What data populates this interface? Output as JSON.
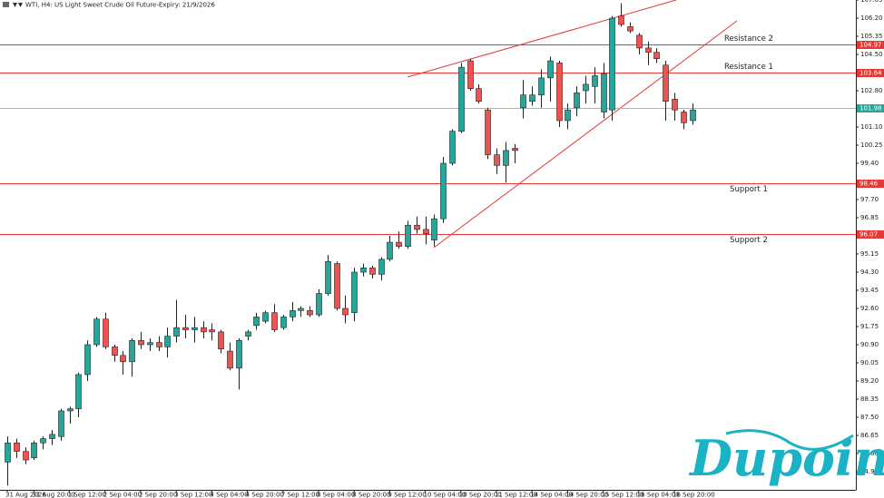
{
  "chart_data": {
    "type": "candlestick",
    "title": "WTI, H4:  US Light Sweet Crude Oil Future-Expiry: 21/9/2026",
    "logo": "Dupoin",
    "categories": [
      "31 Aug 2026",
      null,
      null,
      "31 Aug 20:00",
      null,
      null,
      null,
      "1 Sep 12:00",
      null,
      null,
      null,
      "2 Sep 04:00",
      null,
      null,
      null,
      "2 Sep 20:00",
      null,
      null,
      null,
      "3 Sep 12:00",
      null,
      null,
      null,
      "4 Sep 04:00",
      null,
      null,
      null,
      "4 Sep 20:00",
      null,
      null,
      null,
      "7 Sep 12:00",
      null,
      null,
      null,
      "8 Sep 04:00",
      null,
      null,
      null,
      "8 Sep 20:00",
      null,
      null,
      null,
      "9 Sep 12:00",
      null,
      null,
      null,
      "10 Sep 04:00",
      null,
      null,
      null,
      "10 Sep 20:00",
      null,
      null,
      null,
      "11 Sep 12:00",
      null,
      null,
      null,
      "14 Sep 04:00",
      null,
      null,
      null,
      "14 Sep 20:00",
      null,
      null,
      null,
      "15 Sep 12:00",
      null,
      null,
      null,
      "16 Sep 04:00",
      null,
      null,
      null,
      "16 Sep 20:00",
      null,
      null
    ],
    "open": [
      85.4,
      86.3,
      85.9,
      85.6,
      86.3,
      86.5,
      86.6,
      87.8,
      87.9,
      89.5,
      90.9,
      92.1,
      90.8,
      90.4,
      90.1,
      91.1,
      90.9,
      91.0,
      90.8,
      91.3,
      91.7,
      91.6,
      91.7,
      91.6,
      91.5,
      90.6,
      89.8,
      91.3,
      91.8,
      92.0,
      92.4,
      91.7,
      92.2,
      92.5,
      92.5,
      92.3,
      93.3,
      94.7,
      92.6,
      92.4,
      94.3,
      94.5,
      94.2,
      94.9,
      95.7,
      95.5,
      96.5,
      96.3,
      95.8,
      96.8,
      99.4,
      100.9,
      104.2,
      102.9,
      101.9,
      99.8,
      99.3,
      100.1,
      102.0,
      102.3,
      102.6,
      103.4,
      104.1,
      101.4,
      102.0,
      102.8,
      103.0,
      101.8,
      101.9,
      106.3,
      105.8,
      105.4,
      104.8,
      104.6,
      104.0,
      102.4,
      101.8,
      101.4
    ],
    "high": [
      86.6,
      86.5,
      86.1,
      86.4,
      86.6,
      86.9,
      87.9,
      88.0,
      89.6,
      91.1,
      92.2,
      92.4,
      90.9,
      90.6,
      91.2,
      91.5,
      91.2,
      91.3,
      91.7,
      93.0,
      92.3,
      92.2,
      92.0,
      91.9,
      91.6,
      91.0,
      91.2,
      91.6,
      92.4,
      92.5,
      92.8,
      92.3,
      92.9,
      92.7,
      92.7,
      93.5,
      95.1,
      94.8,
      93.2,
      94.5,
      94.7,
      94.6,
      95.0,
      96.0,
      96.2,
      96.7,
      96.9,
      96.9,
      97.0,
      99.7,
      101.0,
      104.1,
      104.3,
      103.1,
      102.0,
      100.1,
      100.4,
      100.3,
      103.3,
      103.0,
      103.8,
      104.4,
      104.2,
      102.2,
      103.0,
      103.5,
      103.9,
      104.1,
      106.3,
      106.9,
      106.0,
      105.5,
      105.1,
      104.8,
      104.2,
      102.7,
      101.9,
      102.2
    ],
    "low": [
      84.3,
      85.6,
      85.3,
      85.5,
      86.0,
      86.2,
      86.4,
      87.2,
      87.5,
      89.2,
      90.8,
      90.7,
      90.1,
      89.5,
      89.4,
      90.7,
      90.6,
      90.6,
      90.3,
      91.0,
      91.2,
      91.0,
      91.2,
      91.1,
      90.5,
      89.7,
      88.8,
      91.1,
      91.6,
      91.9,
      91.5,
      91.6,
      92.0,
      92.2,
      92.2,
      92.2,
      93.2,
      92.5,
      91.9,
      92.0,
      94.1,
      94.0,
      93.9,
      94.8,
      95.4,
      95.4,
      96.1,
      95.6,
      95.5,
      96.6,
      99.3,
      100.8,
      102.8,
      102.2,
      99.6,
      98.9,
      98.5,
      99.4,
      101.5,
      102.1,
      102.0,
      102.3,
      101.1,
      101.0,
      101.6,
      102.2,
      102.2,
      101.5,
      101.4,
      105.8,
      105.5,
      104.5,
      104.0,
      104.1,
      101.4,
      101.4,
      101.0,
      101.2
    ],
    "close": [
      86.3,
      85.9,
      85.5,
      86.3,
      86.5,
      86.7,
      87.8,
      87.9,
      89.5,
      90.9,
      92.1,
      90.8,
      90.4,
      90.1,
      91.1,
      90.9,
      91.0,
      90.8,
      91.3,
      91.7,
      91.6,
      91.7,
      91.5,
      91.5,
      90.7,
      89.8,
      91.1,
      91.5,
      92.2,
      92.4,
      91.6,
      92.2,
      92.5,
      92.6,
      92.3,
      93.3,
      94.8,
      92.6,
      92.3,
      94.3,
      94.5,
      94.2,
      94.9,
      95.7,
      95.5,
      96.5,
      96.3,
      96.1,
      96.8,
      99.4,
      100.9,
      103.9,
      102.9,
      102.3,
      99.8,
      99.3,
      100.0,
      100.0,
      102.6,
      102.6,
      103.4,
      104.2,
      101.4,
      101.9,
      102.7,
      103.1,
      103.5,
      103.6,
      106.2,
      105.9,
      105.6,
      104.8,
      104.6,
      104.3,
      102.3,
      101.9,
      101.3,
      101.9
    ],
    "up_color": "#26a69a",
    "down_color": "#ef5350",
    "ylim": [
      84.1,
      107.05
    ],
    "yticks": [
      84.95,
      {
        "value": 85.8,
        "label": "85.80"
      },
      86.65,
      {
        "value": 87.5,
        "label": "87.50"
      },
      88.35,
      {
        "value": 89.2,
        "label": "89.20"
      },
      90.05,
      {
        "value": 90.9,
        "label": "90.90"
      },
      91.75,
      {
        "value": 92.6,
        "label": "92.60"
      },
      93.45,
      {
        "value": 94.3,
        "label": "94.30"
      },
      95.15,
      96.85,
      {
        "value": 97.7,
        "label": "97.70"
      },
      {
        "value": 99.4,
        "label": "99.40"
      },
      100.25,
      {
        "value": 101.1,
        "label": "101.10"
      },
      {
        "value": 102.8,
        "label": "102.80"
      },
      {
        "value": 104.5,
        "label": "104.50"
      },
      105.35,
      {
        "value": 106.2,
        "label": "106.20"
      },
      107.05
    ],
    "levels": [
      {
        "name": "Resistance 2",
        "value": 104.97,
        "color": "#e53935"
      },
      {
        "name": "Resistance 1",
        "value": 103.64,
        "color": "#e53935"
      },
      {
        "name": "Support 1",
        "value": 98.46,
        "color": "#e53935"
      },
      {
        "name": "Support 2",
        "value": 96.07,
        "color": "#e53935"
      }
    ],
    "price": {
      "value": 101.98,
      "color": "#26a69a",
      "line_color": "#7ec3e6"
    }
  }
}
